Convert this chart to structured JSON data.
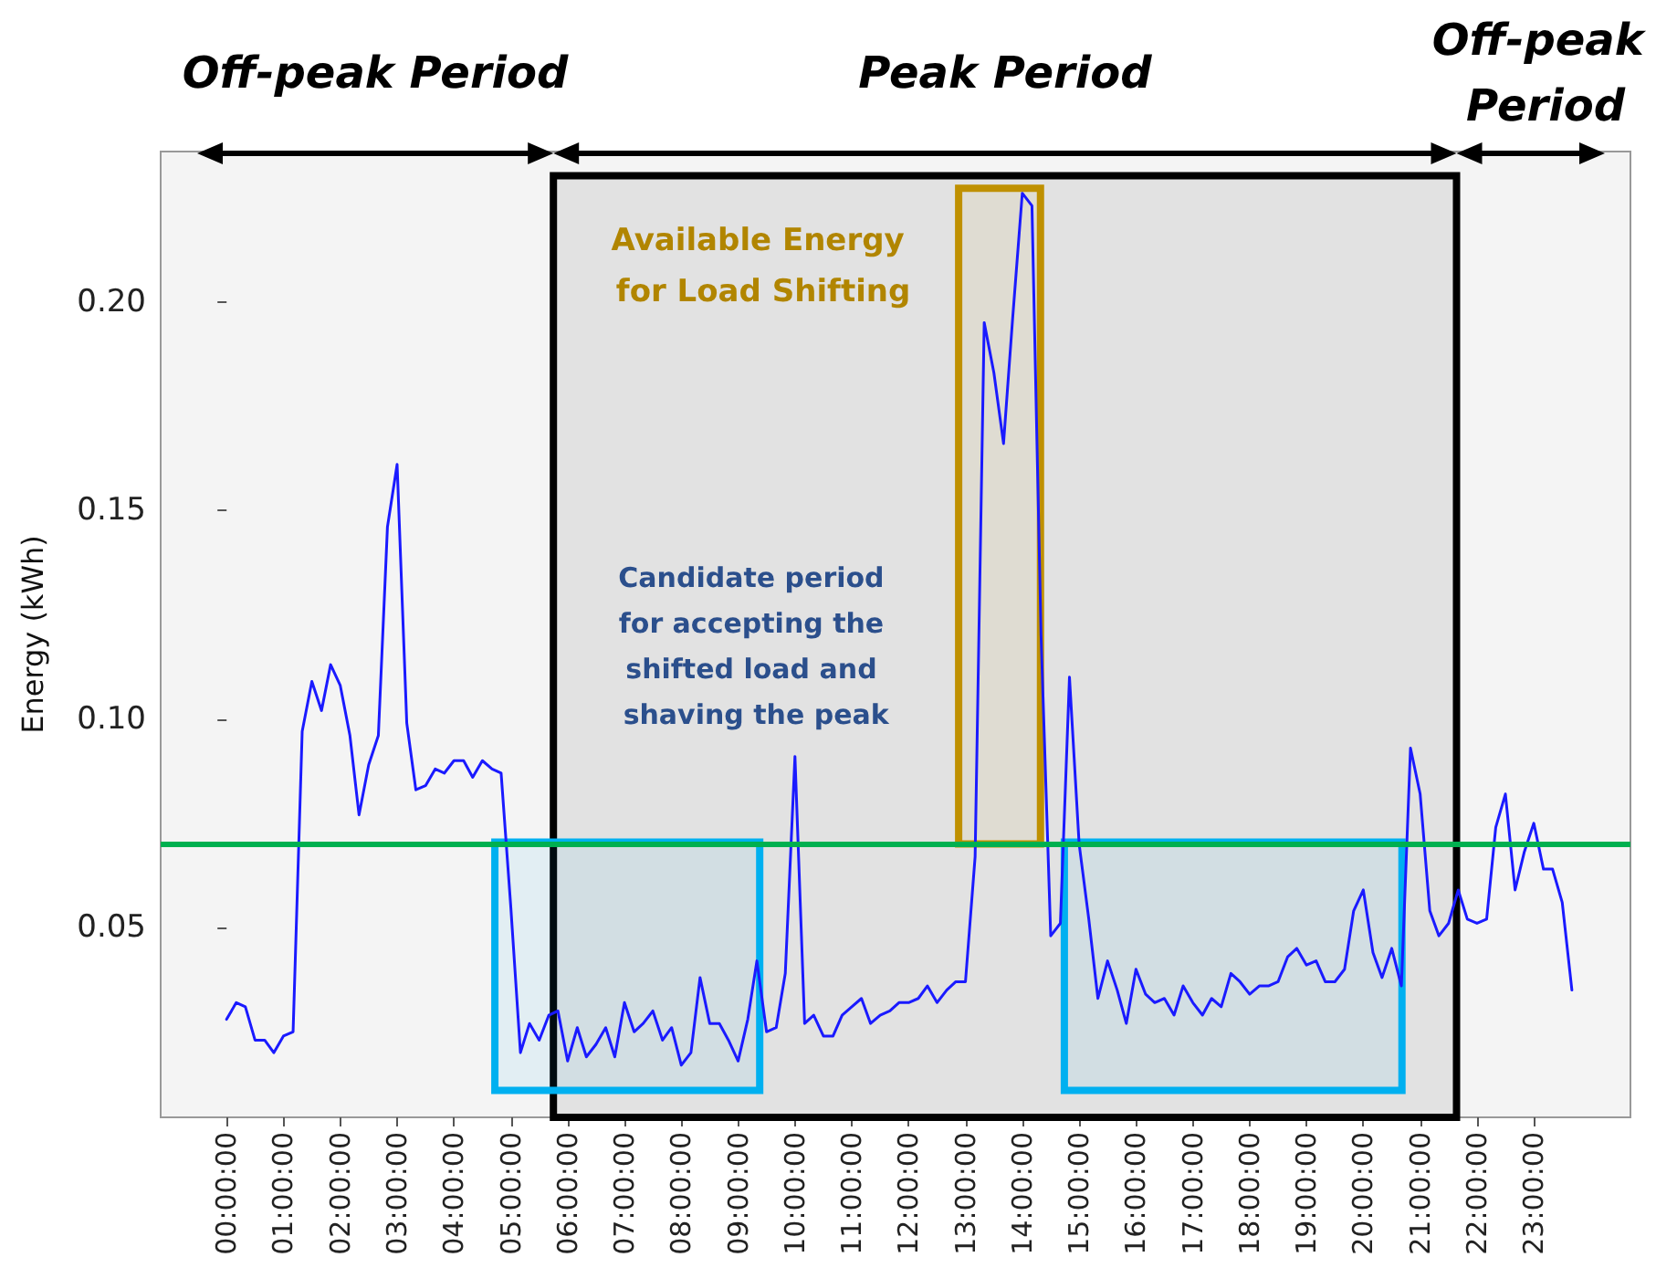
{
  "chart_data": {
    "type": "line",
    "ylabel": "Energy (kWh)",
    "xlim": [
      -1.16,
      24.7
    ],
    "ylim": [
      0.0045,
      0.236
    ],
    "xticks": [
      {
        "value": 0,
        "label": "00:00:00"
      },
      {
        "value": 1,
        "label": "01:00:00"
      },
      {
        "value": 2,
        "label": "02:00:00"
      },
      {
        "value": 3,
        "label": "03:00:00"
      },
      {
        "value": 4,
        "label": "04:00:00"
      },
      {
        "value": 5,
        "label": "05:00:00"
      },
      {
        "value": 6,
        "label": "06:00:00"
      },
      {
        "value": 7,
        "label": "07:00:00"
      },
      {
        "value": 8,
        "label": "08:00:00"
      },
      {
        "value": 9,
        "label": "09:00:00"
      },
      {
        "value": 10,
        "label": "10:00:00"
      },
      {
        "value": 11,
        "label": "11:00:00"
      },
      {
        "value": 12,
        "label": "12:00:00"
      },
      {
        "value": 13,
        "label": "13:00:00"
      },
      {
        "value": 14,
        "label": "14:00:00"
      },
      {
        "value": 15,
        "label": "15:00:00"
      },
      {
        "value": 16,
        "label": "16:00:00"
      },
      {
        "value": 17,
        "label": "17:00:00"
      },
      {
        "value": 18,
        "label": "18:00:00"
      },
      {
        "value": 19,
        "label": "19:00:00"
      },
      {
        "value": 20,
        "label": "20:00:00"
      },
      {
        "value": 21,
        "label": "21:00:00"
      },
      {
        "value": 22,
        "label": "22:00:00"
      },
      {
        "value": 23,
        "label": "23:00:00"
      }
    ],
    "yticks": [
      0.05,
      {
        "value": 0.1,
        "label": "0.10"
      },
      0.15,
      {
        "value": 0.2,
        "label": "0.20"
      }
    ],
    "x": [
      0,
      0.17,
      0.33,
      0.5,
      0.67,
      0.83,
      1,
      1.17,
      1.33,
      1.5,
      1.67,
      1.83,
      2,
      2.17,
      2.33,
      2.5,
      2.67,
      2.83,
      3,
      3.17,
      3.33,
      3.5,
      3.67,
      3.83,
      4,
      4.17,
      4.33,
      4.5,
      4.67,
      4.83,
      5,
      5.17,
      5.33,
      5.5,
      5.67,
      5.83,
      6,
      6.17,
      6.33,
      6.5,
      6.67,
      6.83,
      7,
      7.17,
      7.33,
      7.5,
      7.67,
      7.83,
      8,
      8.17,
      8.33,
      8.5,
      8.67,
      8.83,
      9,
      9.17,
      9.33,
      9.5,
      9.67,
      9.83,
      10,
      10.17,
      10.33,
      10.5,
      10.67,
      10.83,
      11,
      11.17,
      11.33,
      11.5,
      11.67,
      11.83,
      12,
      12.17,
      12.33,
      12.5,
      12.67,
      12.83,
      13,
      13.17,
      13.33,
      13.5,
      13.67,
      13.83,
      14,
      14.17,
      14.33,
      14.5,
      14.67,
      14.83,
      15,
      15.17,
      15.33,
      15.5,
      15.67,
      15.83,
      16,
      16.17,
      16.33,
      16.5,
      16.67,
      16.83,
      17,
      17.17,
      17.33,
      17.5,
      17.67,
      17.83,
      18,
      18.17,
      18.33,
      18.5,
      18.67,
      18.83,
      19,
      19.17,
      19.33,
      19.5,
      19.67,
      19.83,
      20,
      20.17,
      20.33,
      20.5,
      20.67,
      20.83,
      21,
      21.17,
      21.33,
      21.5,
      21.67,
      21.83,
      22,
      22.17,
      22.33,
      22.5,
      22.67,
      22.83,
      23,
      23.17,
      23.33,
      23.5,
      23.67
    ],
    "series": [
      {
        "color": "#1a1aff",
        "values": [
          0.028,
          0.032,
          0.031,
          0.023,
          0.023,
          0.02,
          0.024,
          0.025,
          0.097,
          0.109,
          0.102,
          0.113,
          0.108,
          0.096,
          0.077,
          0.089,
          0.096,
          0.146,
          0.161,
          0.099,
          0.083,
          0.084,
          0.088,
          0.087,
          0.09,
          0.09,
          0.086,
          0.09,
          0.088,
          0.087,
          0.055,
          0.02,
          0.027,
          0.023,
          0.029,
          0.03,
          0.018,
          0.026,
          0.019,
          0.022,
          0.026,
          0.019,
          0.032,
          0.025,
          0.027,
          0.03,
          0.023,
          0.026,
          0.017,
          0.02,
          0.038,
          0.027,
          0.027,
          0.023,
          0.018,
          0.028,
          0.042,
          0.025,
          0.026,
          0.039,
          0.091,
          0.027,
          0.029,
          0.024,
          0.024,
          0.029,
          0.031,
          0.033,
          0.027,
          0.029,
          0.03,
          0.032,
          0.032,
          0.033,
          0.036,
          0.032,
          0.035,
          0.037,
          0.037,
          0.067,
          0.195,
          0.183,
          0.166,
          0.196,
          0.226,
          0.223,
          0.12,
          0.048,
          0.051,
          0.11,
          0.07,
          0.052,
          0.033,
          0.042,
          0.035,
          0.027,
          0.04,
          0.034,
          0.032,
          0.033,
          0.029,
          0.036,
          0.032,
          0.029,
          0.033,
          0.031,
          0.039,
          0.037,
          0.034,
          0.036,
          0.036,
          0.037,
          0.043,
          0.045,
          0.041,
          0.042,
          0.037,
          0.037,
          0.04,
          0.054,
          0.059,
          0.044,
          0.038,
          0.045,
          0.036,
          0.093,
          0.082,
          0.054,
          0.048,
          0.051,
          0.059,
          0.052,
          0.051,
          0.052,
          0.074,
          0.082,
          0.059,
          0.068,
          0.075,
          0.064,
          0.064,
          0.056,
          0.035
        ]
      }
    ],
    "ref_lines": [
      {
        "axis": "y",
        "value": 0.07,
        "color": "#00b050"
      }
    ],
    "bands": [
      {
        "axis": "x",
        "from": 5.75,
        "to": 21.64,
        "color": "#000000",
        "label": "Peak Period"
      },
      {
        "axis": "x",
        "from": 12.88,
        "to": 14.32,
        "color": "#bf9000",
        "label": "Available Energy for Load Shifting"
      },
      {
        "axis": "x",
        "from": 4.72,
        "to": 9.38,
        "color": "#00b0f0"
      },
      {
        "axis": "x",
        "from": 14.74,
        "to": 20.68,
        "color": "#00b0f0"
      }
    ],
    "annotations": [
      "Off-peak Period",
      "Off-peak Period",
      "Candidate period for accepting the shifted load and shaving the peak"
    ],
    "marker": "none",
    "line_style": "solid"
  }
}
